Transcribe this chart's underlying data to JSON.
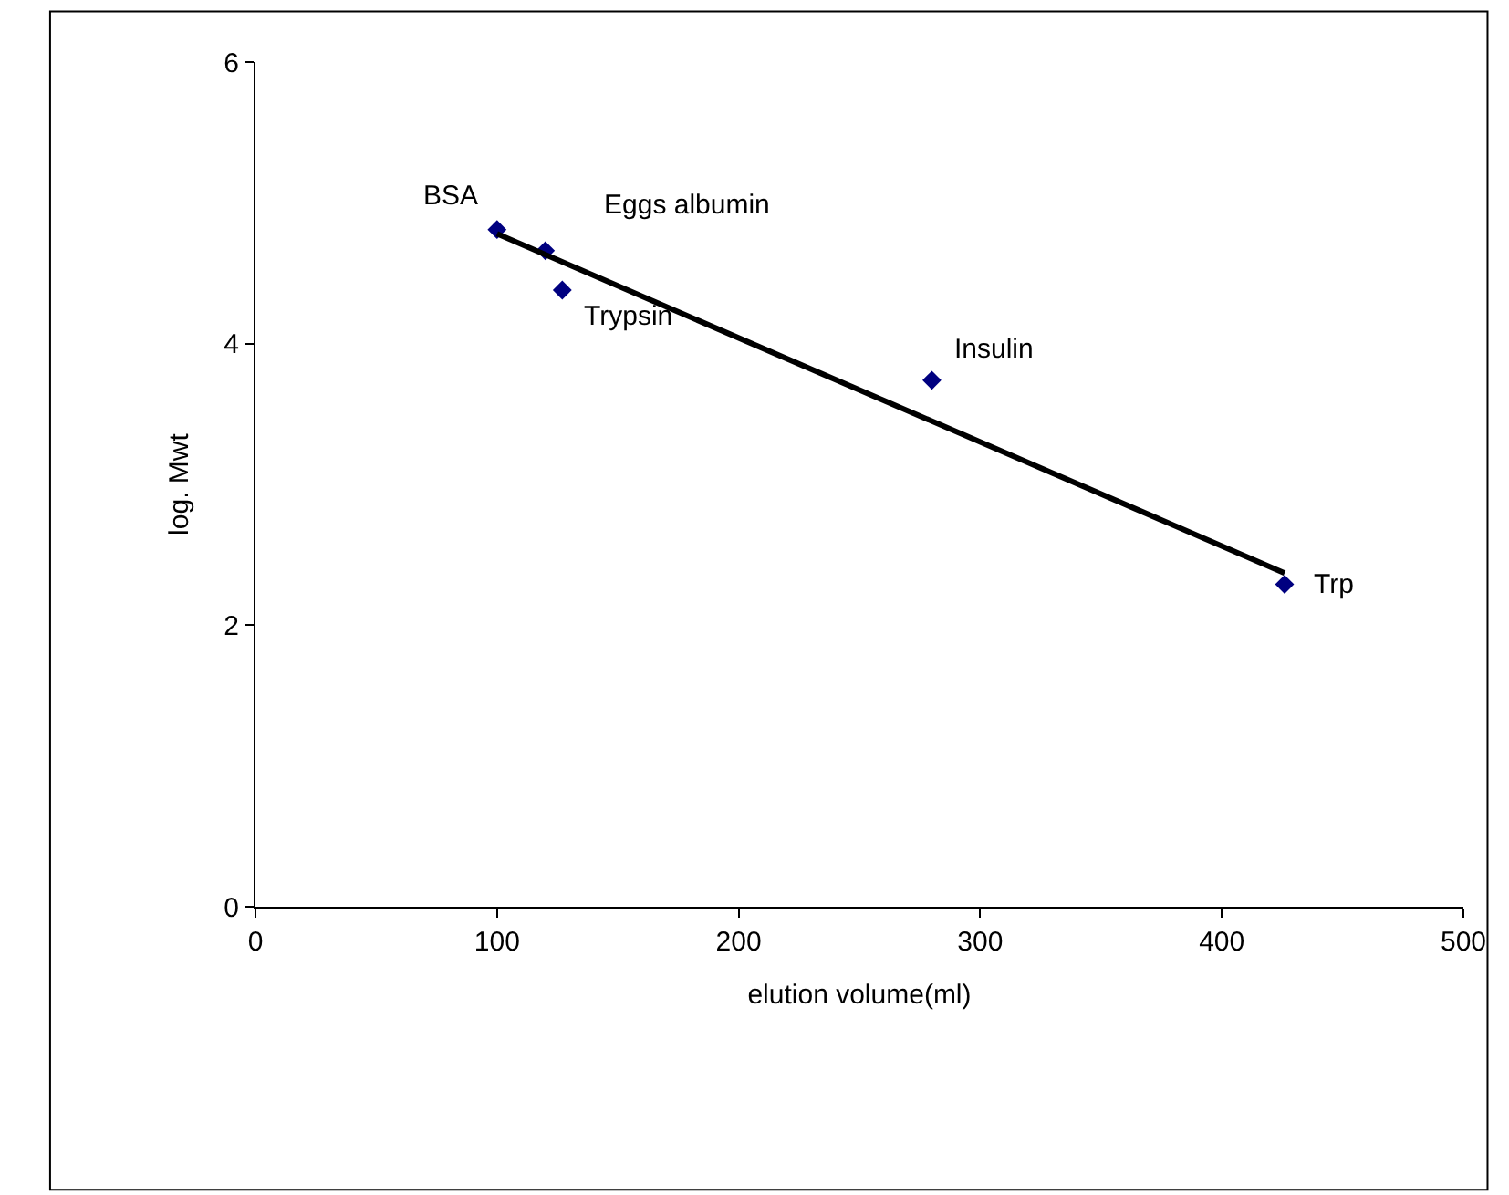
{
  "chart_data": {
    "type": "scatter",
    "xlabel": "elution volume(ml)",
    "ylabel": "log. Mwt",
    "series": [
      {
        "color": "#000080",
        "marker": "diamond",
        "x": [
          100,
          120,
          127,
          280,
          426
        ],
        "values": [
          4.81,
          4.66,
          4.38,
          3.74,
          2.29
        ]
      },
      {
        "type": "line",
        "color": "#000000",
        "marker": "none",
        "line_style": "solid",
        "x": [
          100,
          426
        ],
        "values": [
          4.78,
          2.37
        ]
      }
    ],
    "annotations": [
      {
        "text": "BSA",
        "x": 100,
        "y": 4.81
      },
      {
        "text": "Eggs albumin",
        "x": 120,
        "y": 4.66
      },
      {
        "text": "Trypsin",
        "x": 127,
        "y": 4.38
      },
      {
        "text": "Insulin",
        "x": 280,
        "y": 3.74
      },
      {
        "text": "Trp",
        "x": 426,
        "y": 2.29
      }
    ],
    "xlim": [
      0,
      500
    ],
    "xticks": [
      0,
      100,
      200,
      300,
      400,
      500
    ],
    "ylim": [
      0,
      6
    ],
    "yticks": [
      0,
      2,
      4,
      6
    ]
  }
}
